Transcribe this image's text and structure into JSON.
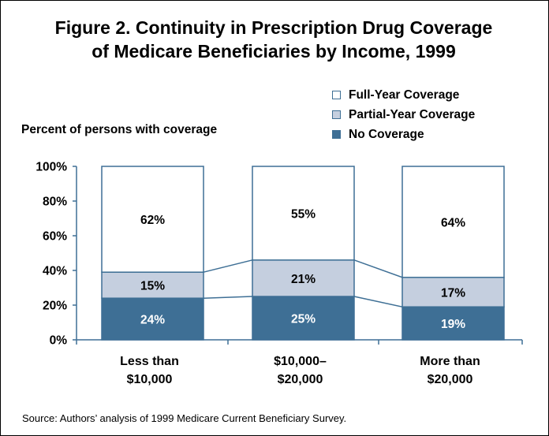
{
  "chart_data": {
    "type": "bar",
    "stacked": true,
    "title": [
      "Figure 2. Continuity in Prescription Drug Coverage",
      "of Medicare Beneficiaries by Income, 1999"
    ],
    "ylabel": "Percent of persons with coverage",
    "xlabel": "",
    "ylim": [
      0,
      100
    ],
    "yticks": [
      "0%",
      "20%",
      "40%",
      "60%",
      "80%",
      "100%"
    ],
    "categories": [
      [
        "Less than",
        "$10,000"
      ],
      [
        "$10,000–",
        "$20,000"
      ],
      [
        "More than",
        "$20,000"
      ]
    ],
    "series": [
      {
        "name": "No Coverage",
        "values": [
          24,
          25,
          19
        ],
        "labels": [
          "24%",
          "25%",
          "19%"
        ],
        "color": "#3e6f95",
        "label_color": "#ffffff"
      },
      {
        "name": "Partial-Year Coverage",
        "values": [
          15,
          21,
          17
        ],
        "labels": [
          "15%",
          "21%",
          "17%"
        ],
        "color": "#c5cfdf",
        "label_color": "#000000"
      },
      {
        "name": "Full-Year Coverage",
        "values": [
          62,
          55,
          64
        ],
        "labels": [
          "62%",
          "55%",
          "64%"
        ],
        "color": "#ffffff",
        "label_color": "#000000"
      }
    ],
    "legend_order": [
      "Full-Year Coverage",
      "Partial-Year Coverage",
      "No Coverage"
    ],
    "legend_position": "top-right",
    "grid": false,
    "connector_lines": true,
    "source": "Source: Authors’ analysis of 1999 Medicare Current Beneficiary Survey."
  }
}
